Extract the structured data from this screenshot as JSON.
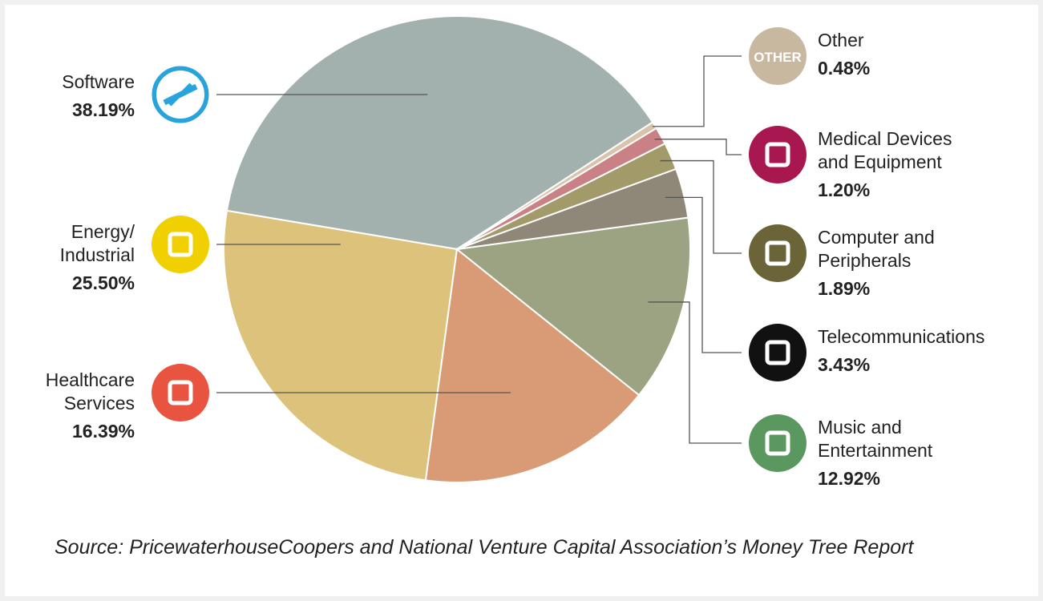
{
  "chart_data": {
    "type": "pie",
    "categories": [
      "Software",
      "Energy/\nIndustrial",
      "Healthcare\nServices",
      "Music and\nEntertainment",
      "Telecommunications",
      "Computer and\nPeripherals",
      "Medical Devices\nand Equipment",
      "Other"
    ],
    "values": [
      38.19,
      25.5,
      16.39,
      12.92,
      3.43,
      1.89,
      1.2,
      0.48
    ],
    "value_labels": [
      "38.19%",
      "25.50%",
      "16.39%",
      "12.92%",
      "3.43%",
      "1.89%",
      "1.20%",
      "0.48%"
    ],
    "colors": [
      "#a3b1ae",
      "#dcc27a",
      "#d99a76",
      "#9ba382",
      "#8f8778",
      "#a39a6a",
      "#c98185",
      "#d8c4ab"
    ],
    "icon_colors": [
      "#29a3dc",
      "#f0d000",
      "#e8543f",
      "#5a9860",
      "#111111",
      "#6b6438",
      "#a8174f",
      "#c8b8a0"
    ],
    "other_icon_text": "OTHER",
    "source": "Source: PricewaterhouseCoopers and National Venture Capital Association’s Money Tree Report"
  }
}
